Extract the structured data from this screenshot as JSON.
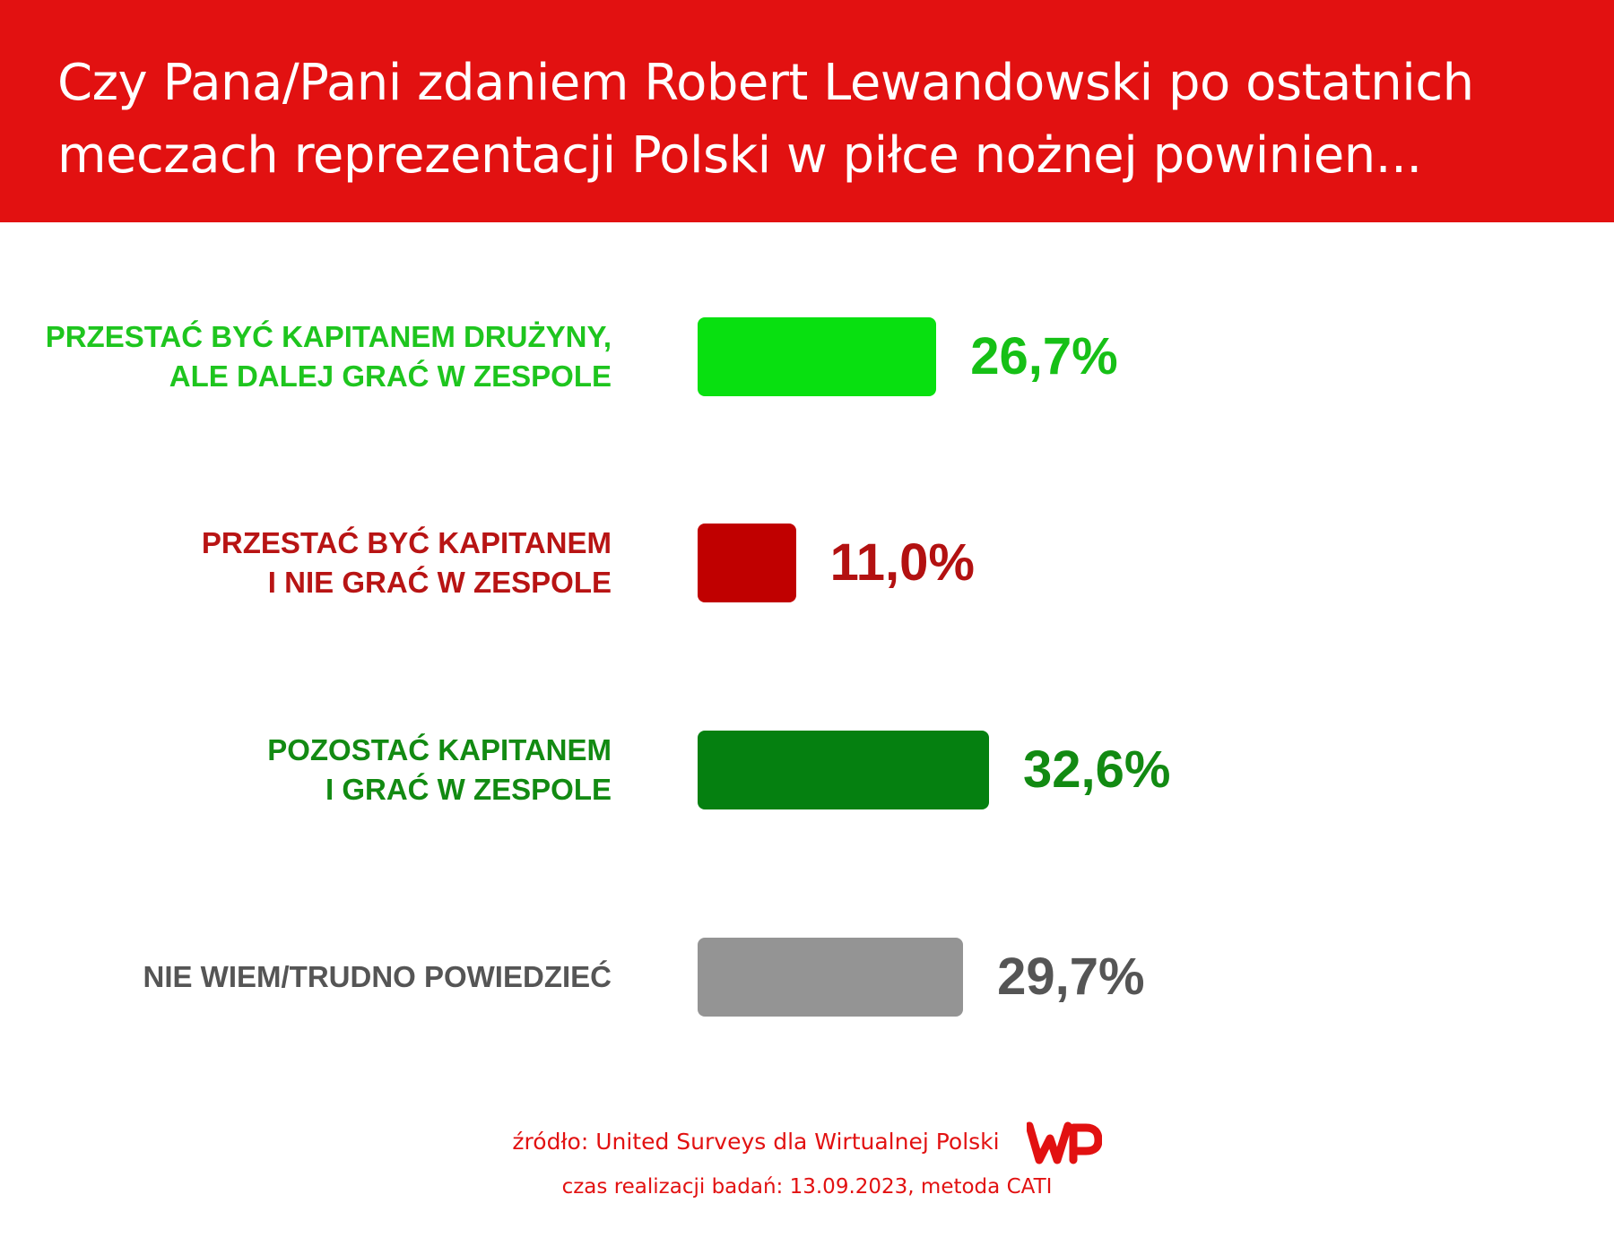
{
  "title": "Czy Pana/Pani zdaniem Robert Lewandowski po ostatnich meczach reprezentacji Polski w piłce nożnej powinien...",
  "chart_data": {
    "type": "bar",
    "orientation": "horizontal",
    "categories": [
      [
        "PRZESTAĆ BYĆ KAPITANEM DRUŻYNY,",
        "ALE DALEJ GRAĆ W ZESPOLE"
      ],
      [
        "PRZESTAĆ BYĆ KAPITANEM",
        "I NIE GRAĆ W ZESPOLE"
      ],
      [
        "POZOSTAĆ KAPITANEM",
        "I GRAĆ W ZESPOLE"
      ],
      [
        "NIE WIEM/TRUDNO POWIEDZIEĆ"
      ]
    ],
    "values": [
      26.7,
      11.0,
      32.6,
      29.7
    ],
    "value_labels": [
      "26,7%",
      "11,0%",
      "32,6%",
      "29,7%"
    ],
    "bar_colors": [
      "#08e010",
      "#c00000",
      "#058010",
      "#949494"
    ],
    "label_colors": [
      "#1ec51e",
      "#b81414",
      "#128a12",
      "#555555"
    ],
    "value_colors": [
      "#16c016",
      "#b31111",
      "#128a12",
      "#555555"
    ],
    "grid": false,
    "legend": "none"
  },
  "footer": {
    "source": "źródło: United Surveys dla Wirtualnej Polski",
    "date": "czas realizacji badań: 13.09.2023, metoda CATI",
    "logo_text": "WP"
  },
  "colors": {
    "header_bg": "#e21111",
    "footer_text": "#e21111"
  }
}
